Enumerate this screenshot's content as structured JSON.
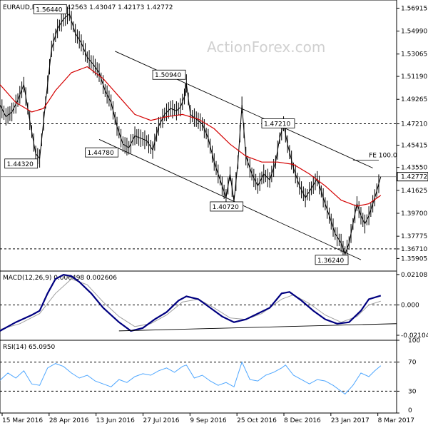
{
  "header": {
    "symbol": "EURAUD,Daily",
    "ohlc": "1.42563 1.43047 1.42173 1.42772"
  },
  "watermark": "ActionForex.com",
  "colors": {
    "price": "#000000",
    "ma": "#d40000",
    "macd": "#000080",
    "signal": "#a0a0a0",
    "rsi": "#4da6ff",
    "channel": "#000000"
  },
  "chart_data": [
    {
      "type": "candlestick",
      "title": "EURAUD,Daily",
      "ylim": [
        1.3485,
        1.576
      ],
      "y_ticks": [
        "1.56915",
        "1.54990",
        "1.53065",
        "1.51190",
        "1.49265",
        "1.47210",
        "1.45415",
        "1.43550",
        "1.42772",
        "1.41625",
        "1.39700",
        "1.37775",
        "1.36710",
        "1.35905"
      ],
      "x_ticks": [
        "15 Mar 2016",
        "28 Apr 2016",
        "13 Jun 2016",
        "27 Jul 2016",
        "9 Sep 2016",
        "25 Oct 2016",
        "8 Dec 2016",
        "23 Jan 2017",
        "8 Mar 2017"
      ],
      "close_price": "1.42772",
      "key_levels": [
        {
          "label": "1.56440",
          "value": 1.5644
        },
        {
          "label": "1.50940",
          "value": 1.5094
        },
        {
          "label": "1.44320",
          "value": 1.4432
        },
        {
          "label": "1.44780",
          "value": 1.4478
        },
        {
          "label": "1.40720",
          "value": 1.4072
        },
        {
          "label": "1.47210",
          "value": 1.4721
        },
        {
          "label": "1.36240",
          "value": 1.3624
        }
      ],
      "horizontal_lines": [
        {
          "label": "1.47210",
          "value": 1.4721
        },
        {
          "label": "1.36710",
          "value": 1.3671
        }
      ],
      "annotation": "FE 100.0",
      "annotation_value": 1.4415,
      "channel_upper": [
        [
          0.29,
          1.533
        ],
        [
          0.94,
          1.435
        ]
      ],
      "channel_lower": [
        [
          0.25,
          1.459
        ],
        [
          0.91,
          1.358
        ]
      ],
      "price_path": [
        [
          0.0,
          1.488
        ],
        [
          0.015,
          1.478
        ],
        [
          0.03,
          1.482
        ],
        [
          0.045,
          1.492
        ],
        [
          0.06,
          1.505
        ],
        [
          0.075,
          1.475
        ],
        [
          0.09,
          1.447
        ],
        [
          0.1,
          1.443
        ],
        [
          0.115,
          1.49
        ],
        [
          0.13,
          1.535
        ],
        [
          0.145,
          1.552
        ],
        [
          0.16,
          1.56
        ],
        [
          0.175,
          1.5644
        ],
        [
          0.19,
          1.548
        ],
        [
          0.205,
          1.54
        ],
        [
          0.22,
          1.528
        ],
        [
          0.235,
          1.522
        ],
        [
          0.25,
          1.515
        ],
        [
          0.265,
          1.5
        ],
        [
          0.28,
          1.49
        ],
        [
          0.295,
          1.47
        ],
        [
          0.31,
          1.455
        ],
        [
          0.325,
          1.452
        ],
        [
          0.34,
          1.462
        ],
        [
          0.355,
          1.46
        ],
        [
          0.37,
          1.458
        ],
        [
          0.385,
          1.45
        ],
        [
          0.4,
          1.47
        ],
        [
          0.415,
          1.48
        ],
        [
          0.43,
          1.485
        ],
        [
          0.445,
          1.483
        ],
        [
          0.455,
          1.486
        ],
        [
          0.465,
          1.495
        ],
        [
          0.47,
          1.506
        ],
        [
          0.48,
          1.48
        ],
        [
          0.495,
          1.476
        ],
        [
          0.51,
          1.472
        ],
        [
          0.525,
          1.46
        ],
        [
          0.54,
          1.44
        ],
        [
          0.555,
          1.425
        ],
        [
          0.57,
          1.41
        ],
        [
          0.58,
          1.43
        ],
        [
          0.59,
          1.4072
        ],
        [
          0.6,
          1.44
        ],
        [
          0.61,
          1.488
        ],
        [
          0.62,
          1.445
        ],
        [
          0.635,
          1.43
        ],
        [
          0.65,
          1.42
        ],
        [
          0.665,
          1.43
        ],
        [
          0.68,
          1.425
        ],
        [
          0.695,
          1.44
        ],
        [
          0.705,
          1.46
        ],
        [
          0.715,
          1.4721
        ],
        [
          0.725,
          1.455
        ],
        [
          0.74,
          1.435
        ],
        [
          0.755,
          1.42
        ],
        [
          0.77,
          1.41
        ],
        [
          0.785,
          1.418
        ],
        [
          0.8,
          1.426
        ],
        [
          0.815,
          1.41
        ],
        [
          0.83,
          1.395
        ],
        [
          0.845,
          1.38
        ],
        [
          0.86,
          1.372
        ],
        [
          0.87,
          1.3624
        ],
        [
          0.88,
          1.372
        ],
        [
          0.89,
          1.388
        ],
        [
          0.9,
          1.405
        ],
        [
          0.91,
          1.395
        ],
        [
          0.92,
          1.388
        ],
        [
          0.93,
          1.395
        ],
        [
          0.945,
          1.41
        ],
        [
          0.96,
          1.4277
        ]
      ],
      "ma_path": [
        [
          0.0,
          1.505
        ],
        [
          0.04,
          1.49
        ],
        [
          0.08,
          1.482
        ],
        [
          0.11,
          1.485
        ],
        [
          0.14,
          1.5
        ],
        [
          0.18,
          1.515
        ],
        [
          0.22,
          1.52
        ],
        [
          0.26,
          1.51
        ],
        [
          0.3,
          1.495
        ],
        [
          0.34,
          1.48
        ],
        [
          0.38,
          1.475
        ],
        [
          0.42,
          1.478
        ],
        [
          0.46,
          1.48
        ],
        [
          0.5,
          1.476
        ],
        [
          0.54,
          1.468
        ],
        [
          0.58,
          1.455
        ],
        [
          0.62,
          1.445
        ],
        [
          0.66,
          1.44
        ],
        [
          0.7,
          1.44
        ],
        [
          0.74,
          1.438
        ],
        [
          0.78,
          1.43
        ],
        [
          0.82,
          1.42
        ],
        [
          0.86,
          1.408
        ],
        [
          0.9,
          1.403
        ],
        [
          0.93,
          1.405
        ],
        [
          0.96,
          1.412
        ]
      ]
    },
    {
      "type": "line",
      "title": "MACD(12,26,9) 0.006498 0.002606",
      "ylim": [
        -0.0245,
        0.0235
      ],
      "y_ticks": [
        "0.021087",
        "0.000",
        "-0.021041"
      ],
      "macd_path": [
        [
          0.0,
          -0.018
        ],
        [
          0.04,
          -0.012
        ],
        [
          0.08,
          -0.007
        ],
        [
          0.1,
          -0.004
        ],
        [
          0.12,
          0.008
        ],
        [
          0.14,
          0.018
        ],
        [
          0.16,
          0.021
        ],
        [
          0.18,
          0.02
        ],
        [
          0.2,
          0.016
        ],
        [
          0.23,
          0.008
        ],
        [
          0.26,
          -0.002
        ],
        [
          0.3,
          -0.012
        ],
        [
          0.33,
          -0.018
        ],
        [
          0.36,
          -0.016
        ],
        [
          0.39,
          -0.01
        ],
        [
          0.42,
          -0.005
        ],
        [
          0.45,
          0.003
        ],
        [
          0.47,
          0.006
        ],
        [
          0.5,
          0.004
        ],
        [
          0.53,
          -0.002
        ],
        [
          0.56,
          -0.008
        ],
        [
          0.59,
          -0.012
        ],
        [
          0.62,
          -0.01
        ],
        [
          0.65,
          -0.006
        ],
        [
          0.68,
          -0.002
        ],
        [
          0.71,
          0.008
        ],
        [
          0.73,
          0.009
        ],
        [
          0.76,
          0.003
        ],
        [
          0.79,
          -0.004
        ],
        [
          0.82,
          -0.01
        ],
        [
          0.85,
          -0.013
        ],
        [
          0.88,
          -0.012
        ],
        [
          0.91,
          -0.004
        ],
        [
          0.93,
          0.004
        ],
        [
          0.96,
          0.0065
        ]
      ],
      "signal_path": [
        [
          0.0,
          -0.017
        ],
        [
          0.05,
          -0.013
        ],
        [
          0.1,
          -0.006
        ],
        [
          0.14,
          0.008
        ],
        [
          0.18,
          0.018
        ],
        [
          0.22,
          0.014
        ],
        [
          0.26,
          0.002
        ],
        [
          0.3,
          -0.008
        ],
        [
          0.34,
          -0.015
        ],
        [
          0.38,
          -0.013
        ],
        [
          0.42,
          -0.007
        ],
        [
          0.46,
          0.002
        ],
        [
          0.5,
          0.004
        ],
        [
          0.54,
          -0.002
        ],
        [
          0.58,
          -0.009
        ],
        [
          0.62,
          -0.01
        ],
        [
          0.66,
          -0.006
        ],
        [
          0.71,
          0.004
        ],
        [
          0.74,
          0.007
        ],
        [
          0.78,
          0.001
        ],
        [
          0.82,
          -0.007
        ],
        [
          0.86,
          -0.012
        ],
        [
          0.9,
          -0.008
        ],
        [
          0.93,
          0.0
        ],
        [
          0.96,
          0.0026
        ]
      ],
      "trendline": [
        [
          0.3,
          -0.018
        ],
        [
          1.0,
          -0.013
        ]
      ]
    },
    {
      "type": "line",
      "title": "RSI(14) 65.0950",
      "ylim": [
        0,
        100
      ],
      "y_ticks": [
        "100",
        "70",
        "30",
        "0"
      ],
      "rsi_path": [
        [
          0.0,
          45
        ],
        [
          0.02,
          55
        ],
        [
          0.04,
          48
        ],
        [
          0.06,
          58
        ],
        [
          0.08,
          40
        ],
        [
          0.1,
          38
        ],
        [
          0.12,
          62
        ],
        [
          0.14,
          68
        ],
        [
          0.16,
          64
        ],
        [
          0.18,
          55
        ],
        [
          0.2,
          48
        ],
        [
          0.22,
          52
        ],
        [
          0.24,
          44
        ],
        [
          0.26,
          40
        ],
        [
          0.28,
          36
        ],
        [
          0.3,
          46
        ],
        [
          0.32,
          42
        ],
        [
          0.34,
          50
        ],
        [
          0.36,
          54
        ],
        [
          0.38,
          52
        ],
        [
          0.4,
          58
        ],
        [
          0.42,
          62
        ],
        [
          0.44,
          56
        ],
        [
          0.46,
          64
        ],
        [
          0.47,
          66
        ],
        [
          0.49,
          48
        ],
        [
          0.51,
          52
        ],
        [
          0.53,
          44
        ],
        [
          0.55,
          38
        ],
        [
          0.57,
          42
        ],
        [
          0.59,
          36
        ],
        [
          0.61,
          70
        ],
        [
          0.63,
          46
        ],
        [
          0.65,
          44
        ],
        [
          0.67,
          52
        ],
        [
          0.69,
          56
        ],
        [
          0.71,
          62
        ],
        [
          0.72,
          66
        ],
        [
          0.74,
          52
        ],
        [
          0.76,
          46
        ],
        [
          0.78,
          40
        ],
        [
          0.8,
          46
        ],
        [
          0.82,
          44
        ],
        [
          0.84,
          38
        ],
        [
          0.86,
          30
        ],
        [
          0.87,
          26
        ],
        [
          0.89,
          38
        ],
        [
          0.91,
          55
        ],
        [
          0.93,
          50
        ],
        [
          0.945,
          58
        ],
        [
          0.96,
          65
        ]
      ]
    }
  ]
}
